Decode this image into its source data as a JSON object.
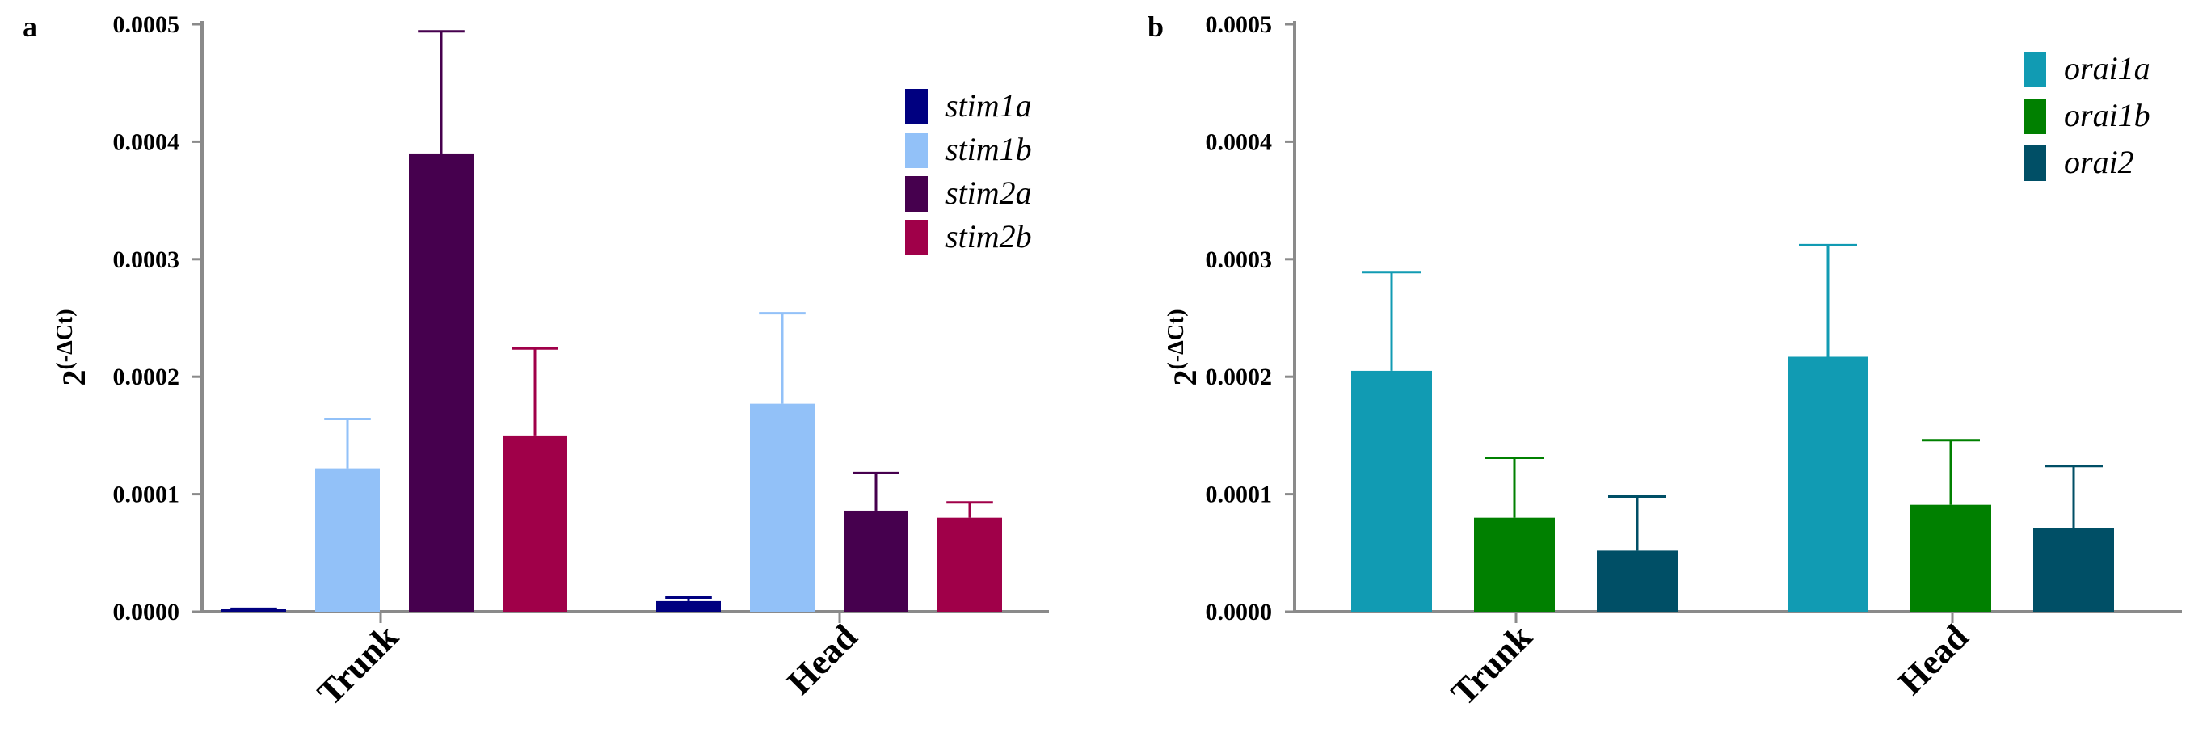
{
  "chart_data": [
    {
      "panel_letter": "a",
      "type": "bar",
      "title": "",
      "ylabel_base": "2",
      "ylabel_exp": "(-ΔCt)",
      "ylim": [
        0,
        0.0005
      ],
      "yticks": [
        "0.0000",
        "0.0001",
        "0.0002",
        "0.0003",
        "0.0004",
        "0.0005"
      ],
      "ytick_values": [
        0,
        0.0001,
        0.0002,
        0.0003,
        0.0004,
        0.0005
      ],
      "categories": [
        "Trunk",
        "Head"
      ],
      "legend_position": "top-right",
      "series": [
        {
          "name": "stim1a",
          "color": "#000080",
          "values": [
            2e-06,
            9e-06
          ],
          "errors": [
            5e-07,
            3e-06
          ]
        },
        {
          "name": "stim1b",
          "color": "#92c1f8",
          "values": [
            0.000122,
            0.000177
          ],
          "errors": [
            4.2e-05,
            7.7e-05
          ]
        },
        {
          "name": "stim2a",
          "color": "#46004e",
          "values": [
            0.00039,
            8.6e-05
          ],
          "errors": [
            0.000104,
            3.2e-05
          ]
        },
        {
          "name": "stim2b",
          "color": "#a00049",
          "values": [
            0.00015,
            8e-05
          ],
          "errors": [
            7.4e-05,
            1.3e-05
          ]
        }
      ]
    },
    {
      "panel_letter": "b",
      "type": "bar",
      "title": "",
      "ylabel_base": "2",
      "ylabel_exp": "(-ΔCt)",
      "ylim": [
        0,
        0.0005
      ],
      "yticks": [
        "0.0000",
        "0.0001",
        "0.0002",
        "0.0003",
        "0.0004",
        "0.0005"
      ],
      "ytick_values": [
        0,
        0.0001,
        0.0002,
        0.0003,
        0.0004,
        0.0005
      ],
      "categories": [
        "Trunk",
        "Head"
      ],
      "legend_position": "top-right",
      "series": [
        {
          "name": "orai1a",
          "color": "#119bb3",
          "values": [
            0.000205,
            0.000217
          ],
          "errors": [
            8.4e-05,
            9.5e-05
          ]
        },
        {
          "name": "orai1b",
          "color": "#008000",
          "values": [
            8e-05,
            9.1e-05
          ],
          "errors": [
            5.1e-05,
            5.5e-05
          ]
        },
        {
          "name": "orai2",
          "color": "#004f66",
          "values": [
            5.2e-05,
            7.1e-05
          ],
          "errors": [
            4.6e-05,
            5.3e-05
          ]
        }
      ]
    }
  ]
}
